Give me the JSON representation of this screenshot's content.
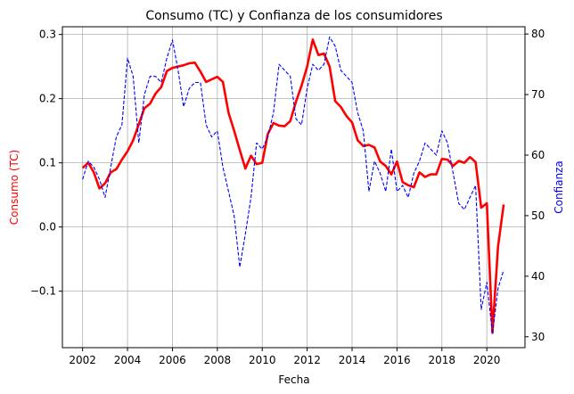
{
  "chart_data": {
    "type": "line",
    "title": "Consumo (TC) y Confianza de los consumidores",
    "xlabel": "Fecha",
    "ylabel_left": "Consumo (TC)",
    "ylabel_right": "Confianza",
    "xlim": [
      2001.1,
      2021.7
    ],
    "ylim_left": [
      -0.188,
      0.312
    ],
    "ylim_right": [
      28.2,
      81.2
    ],
    "x_ticks": [
      2002,
      2004,
      2006,
      2008,
      2010,
      2012,
      2014,
      2016,
      2018,
      2020
    ],
    "y_ticks_left": [
      -0.1,
      0.0,
      0.1,
      0.2,
      0.3
    ],
    "y_ticks_left_labels": [
      "−0.1",
      "0.0",
      "0.1",
      "0.2",
      "0.3"
    ],
    "y_ticks_right": [
      30,
      40,
      50,
      60,
      70,
      80
    ],
    "y_ticks_right_labels": [
      "30",
      "40",
      "50",
      "60",
      "70",
      "80"
    ],
    "grid": true,
    "colors": {
      "consumo": "#ff0000",
      "confianza": "#0000ff"
    },
    "series": [
      {
        "axis": "left",
        "style": "solid",
        "points": [
          [
            2002.0,
            0.092
          ],
          [
            2002.25,
            0.1
          ],
          [
            2002.5,
            0.085
          ],
          [
            2002.75,
            0.06
          ],
          [
            2003.0,
            0.068
          ],
          [
            2003.25,
            0.085
          ],
          [
            2003.5,
            0.09
          ],
          [
            2003.75,
            0.105
          ],
          [
            2004.0,
            0.118
          ],
          [
            2004.25,
            0.135
          ],
          [
            2004.5,
            0.16
          ],
          [
            2004.75,
            0.185
          ],
          [
            2005.0,
            0.192
          ],
          [
            2005.25,
            0.208
          ],
          [
            2005.5,
            0.218
          ],
          [
            2005.75,
            0.243
          ],
          [
            2006.0,
            0.248
          ],
          [
            2006.25,
            0.25
          ],
          [
            2006.5,
            0.252
          ],
          [
            2006.75,
            0.255
          ],
          [
            2007.0,
            0.256
          ],
          [
            2007.25,
            0.242
          ],
          [
            2007.5,
            0.226
          ],
          [
            2007.75,
            0.23
          ],
          [
            2008.0,
            0.234
          ],
          [
            2008.25,
            0.226
          ],
          [
            2008.5,
            0.178
          ],
          [
            2008.75,
            0.15
          ],
          [
            2009.0,
            0.12
          ],
          [
            2009.25,
            0.091
          ],
          [
            2009.5,
            0.111
          ],
          [
            2009.75,
            0.098
          ],
          [
            2010.0,
            0.1
          ],
          [
            2010.25,
            0.145
          ],
          [
            2010.5,
            0.162
          ],
          [
            2010.75,
            0.158
          ],
          [
            2011.0,
            0.157
          ],
          [
            2011.25,
            0.165
          ],
          [
            2011.5,
            0.195
          ],
          [
            2011.75,
            0.22
          ],
          [
            2012.0,
            0.25
          ],
          [
            2012.25,
            0.292
          ],
          [
            2012.5,
            0.268
          ],
          [
            2012.75,
            0.27
          ],
          [
            2013.0,
            0.25
          ],
          [
            2013.25,
            0.196
          ],
          [
            2013.5,
            0.187
          ],
          [
            2013.75,
            0.173
          ],
          [
            2014.0,
            0.163
          ],
          [
            2014.25,
            0.135
          ],
          [
            2014.5,
            0.126
          ],
          [
            2014.75,
            0.128
          ],
          [
            2015.0,
            0.124
          ],
          [
            2015.25,
            0.102
          ],
          [
            2015.5,
            0.095
          ],
          [
            2015.75,
            0.082
          ],
          [
            2016.0,
            0.102
          ],
          [
            2016.25,
            0.07
          ],
          [
            2016.5,
            0.065
          ],
          [
            2016.75,
            0.062
          ],
          [
            2017.0,
            0.085
          ],
          [
            2017.25,
            0.078
          ],
          [
            2017.5,
            0.082
          ],
          [
            2017.75,
            0.082
          ],
          [
            2018.0,
            0.106
          ],
          [
            2018.25,
            0.105
          ],
          [
            2018.5,
            0.095
          ],
          [
            2018.75,
            0.103
          ],
          [
            2019.0,
            0.1
          ],
          [
            2019.25,
            0.109
          ],
          [
            2019.5,
            0.101
          ],
          [
            2019.75,
            0.03
          ],
          [
            2020.0,
            0.037
          ],
          [
            2020.25,
            -0.165
          ],
          [
            2020.5,
            -0.03
          ],
          [
            2020.75,
            0.035
          ]
        ]
      },
      {
        "axis": "right",
        "style": "dashed",
        "points": [
          [
            2002.0,
            56.0
          ],
          [
            2002.25,
            59.0
          ],
          [
            2002.5,
            58.0
          ],
          [
            2002.75,
            56.0
          ],
          [
            2003.0,
            53.0
          ],
          [
            2003.25,
            58.0
          ],
          [
            2003.5,
            63.0
          ],
          [
            2003.75,
            65.0
          ],
          [
            2004.0,
            76.0
          ],
          [
            2004.25,
            73.0
          ],
          [
            2004.5,
            62.0
          ],
          [
            2004.75,
            70.0
          ],
          [
            2005.0,
            73.0
          ],
          [
            2005.25,
            73.0
          ],
          [
            2005.5,
            72.0
          ],
          [
            2005.75,
            76.0
          ],
          [
            2006.0,
            79.0
          ],
          [
            2006.25,
            74.0
          ],
          [
            2006.5,
            68.0
          ],
          [
            2006.75,
            71.0
          ],
          [
            2007.0,
            72.0
          ],
          [
            2007.25,
            72.0
          ],
          [
            2007.5,
            65.0
          ],
          [
            2007.75,
            63.0
          ],
          [
            2008.0,
            64.0
          ],
          [
            2008.25,
            58.0
          ],
          [
            2008.5,
            54.0
          ],
          [
            2008.75,
            50.0
          ],
          [
            2009.0,
            41.5
          ],
          [
            2009.25,
            47.0
          ],
          [
            2009.5,
            53.0
          ],
          [
            2009.75,
            62.0
          ],
          [
            2010.0,
            61.0
          ],
          [
            2010.25,
            63.0
          ],
          [
            2010.5,
            67.0
          ],
          [
            2010.75,
            75.0
          ],
          [
            2011.0,
            74.0
          ],
          [
            2011.25,
            73.0
          ],
          [
            2011.5,
            66.0
          ],
          [
            2011.75,
            65.0
          ],
          [
            2012.0,
            71.0
          ],
          [
            2012.25,
            75.0
          ],
          [
            2012.5,
            74.0
          ],
          [
            2012.75,
            75.0
          ],
          [
            2013.0,
            79.5
          ],
          [
            2013.25,
            78.0
          ],
          [
            2013.5,
            74.0
          ],
          [
            2013.75,
            73.0
          ],
          [
            2014.0,
            72.0
          ],
          [
            2014.25,
            67.0
          ],
          [
            2014.5,
            64.0
          ],
          [
            2014.75,
            54.0
          ],
          [
            2015.0,
            59.0
          ],
          [
            2015.25,
            57.0
          ],
          [
            2015.5,
            54.0
          ],
          [
            2015.75,
            61.0
          ],
          [
            2016.0,
            54.0
          ],
          [
            2016.25,
            55.0
          ],
          [
            2016.5,
            53.0
          ],
          [
            2016.75,
            57.0
          ],
          [
            2017.0,
            59.0
          ],
          [
            2017.25,
            62.0
          ],
          [
            2017.5,
            61.0
          ],
          [
            2017.75,
            60.0
          ],
          [
            2018.0,
            64.0
          ],
          [
            2018.25,
            62.0
          ],
          [
            2018.5,
            57.0
          ],
          [
            2018.75,
            52.0
          ],
          [
            2019.0,
            51.0
          ],
          [
            2019.25,
            53.0
          ],
          [
            2019.5,
            55.0
          ],
          [
            2019.75,
            34.5
          ],
          [
            2020.0,
            39.0
          ],
          [
            2020.25,
            30.5
          ],
          [
            2020.5,
            38.0
          ],
          [
            2020.75,
            41.0
          ]
        ]
      }
    ]
  }
}
